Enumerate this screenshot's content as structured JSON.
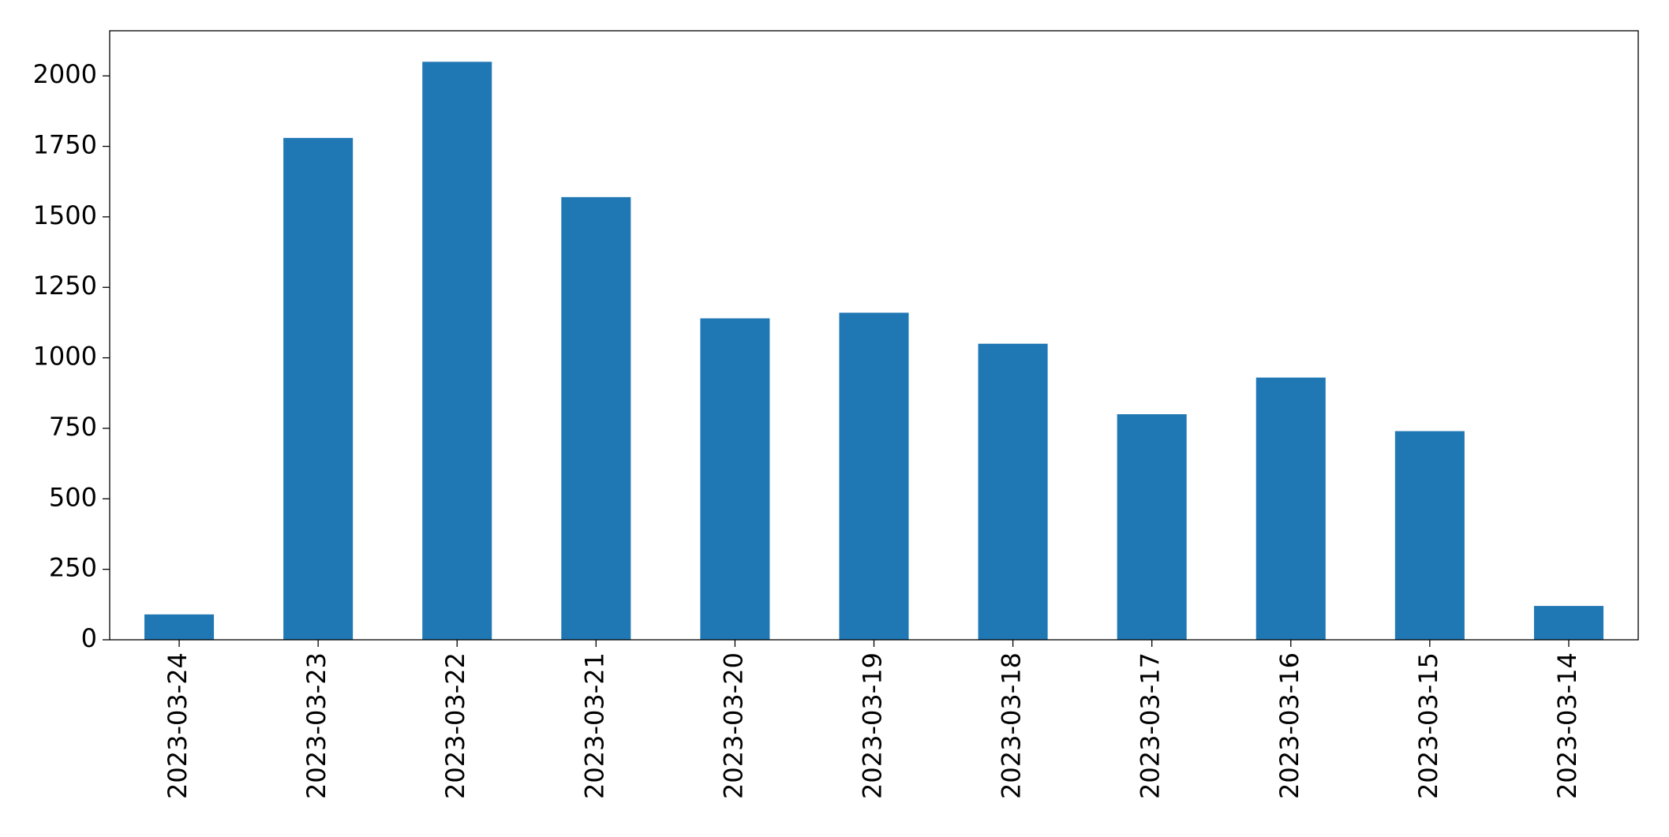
{
  "chart_data": {
    "type": "bar",
    "categories": [
      "2023-03-24",
      "2023-03-23",
      "2023-03-22",
      "2023-03-21",
      "2023-03-20",
      "2023-03-19",
      "2023-03-18",
      "2023-03-17",
      "2023-03-16",
      "2023-03-15",
      "2023-03-14"
    ],
    "values": [
      90,
      1780,
      2050,
      1570,
      1140,
      1160,
      1050,
      800,
      930,
      740,
      120
    ],
    "color": "#1f77b4",
    "ylim": [
      0,
      2160
    ],
    "yticks": [
      0,
      250,
      500,
      750,
      1000,
      1250,
      1500,
      1750,
      2000
    ],
    "grid": false
  }
}
